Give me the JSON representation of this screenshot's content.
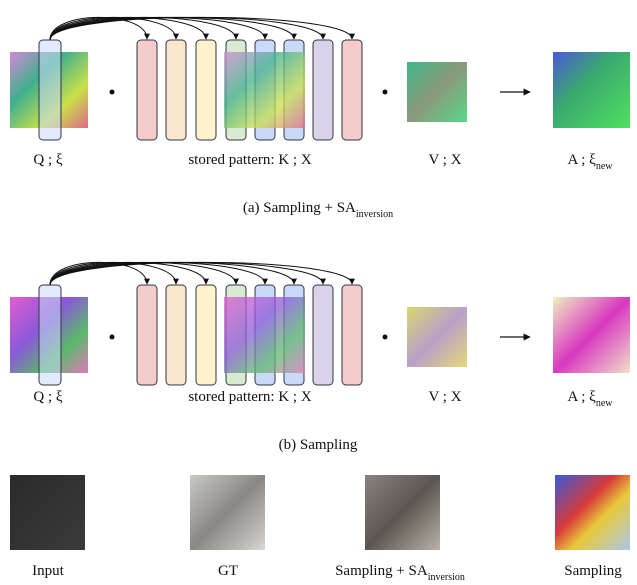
{
  "panels": [
    {
      "labels": {
        "q": "Q ; ξ",
        "k": "stored pattern: K ; X",
        "v": "V ; X",
        "a": "A ; ξ",
        "a_sub": "new"
      },
      "caption": "(a) Sampling + SA",
      "caption_sub": "inversion"
    },
    {
      "labels": {
        "q": "Q ; ξ",
        "k": "stored pattern: K ; X",
        "v": "V ; X",
        "a": "A ; ξ",
        "a_sub": "new"
      },
      "caption": "(b) Sampling"
    }
  ],
  "results": [
    {
      "label": "Input"
    },
    {
      "label": "GT"
    },
    {
      "label": "Sampling + SA",
      "sub": "inversion"
    },
    {
      "label": "Sampling"
    }
  ]
}
